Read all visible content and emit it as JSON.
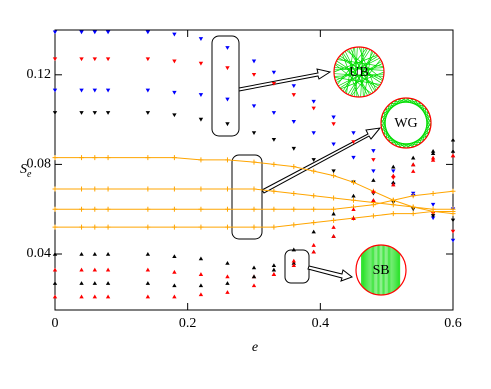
{
  "chart_data": {
    "type": "scatter",
    "xlabel": "e",
    "ylabel": "S",
    "ylabel_sub": "e",
    "x": [
      0,
      0.04,
      0.06,
      0.08,
      0.14,
      0.18,
      0.22,
      0.26,
      0.3,
      0.33,
      0.36,
      0.39,
      0.42,
      0.45,
      0.48,
      0.51,
      0.54,
      0.57,
      0.6
    ],
    "xlim": [
      0,
      0.6
    ],
    "xticks": [
      0,
      0.2,
      0.4,
      0.6
    ],
    "ylim": [
      0.015,
      0.14
    ],
    "yticks": [
      0.04,
      0.08,
      0.12
    ],
    "series": [
      {
        "color": "#0000ff",
        "marker": "down",
        "values": [
          0.139,
          0.139,
          0.139,
          0.139,
          0.139,
          0.138,
          0.136,
          0.132,
          0.126,
          0.121,
          0.115,
          0.108,
          0.101,
          0.094,
          0.086,
          0.077,
          0.067,
          0.056,
          0.046
        ]
      },
      {
        "color": "#ff0000",
        "marker": "down",
        "values": [
          0.127,
          0.127,
          0.127,
          0.127,
          0.127,
          0.126,
          0.125,
          0.123,
          0.12,
          0.116,
          0.111,
          0.105,
          0.098,
          0.09,
          0.082,
          0.074,
          0.066,
          0.058,
          0.05
        ]
      },
      {
        "color": "#0000ff",
        "marker": "down",
        "values": [
          0.113,
          0.113,
          0.113,
          0.113,
          0.113,
          0.112,
          0.111,
          0.109,
          0.106,
          0.103,
          0.099,
          0.094,
          0.089,
          0.083,
          0.077,
          0.071,
          0.066,
          0.062,
          0.06
        ]
      },
      {
        "color": "#000000",
        "marker": "down",
        "values": [
          0.103,
          0.103,
          0.103,
          0.103,
          0.103,
          0.102,
          0.1,
          0.098,
          0.094,
          0.091,
          0.087,
          0.082,
          0.077,
          0.072,
          0.067,
          0.063,
          0.06,
          0.057,
          0.055
        ]
      },
      {
        "color": "#ffa500",
        "marker": "plus",
        "line": true,
        "values": [
          0.083,
          0.083,
          0.083,
          0.083,
          0.083,
          0.083,
          0.082,
          0.082,
          0.081,
          0.08,
          0.079,
          0.077,
          0.075,
          0.072,
          0.068,
          0.064,
          0.061,
          0.059,
          0.058
        ]
      },
      {
        "color": "#ffa500",
        "marker": "plus",
        "line": true,
        "values": [
          0.069,
          0.069,
          0.069,
          0.069,
          0.069,
          0.069,
          0.069,
          0.069,
          0.069,
          0.068,
          0.067,
          0.066,
          0.065,
          0.064,
          0.063,
          0.062,
          0.061,
          0.06,
          0.06
        ]
      },
      {
        "color": "#ffa500",
        "marker": "plus",
        "line": true,
        "values": [
          0.06,
          0.06,
          0.06,
          0.06,
          0.06,
          0.06,
          0.06,
          0.06,
          0.06,
          0.06,
          0.06,
          0.06,
          0.06,
          0.061,
          0.062,
          0.064,
          0.066,
          0.067,
          0.068
        ]
      },
      {
        "color": "#ffa500",
        "marker": "plus",
        "line": true,
        "values": [
          0.052,
          0.052,
          0.052,
          0.052,
          0.052,
          0.052,
          0.052,
          0.052,
          0.052,
          0.052,
          0.053,
          0.054,
          0.055,
          0.056,
          0.057,
          0.058,
          0.058,
          0.059,
          0.059
        ]
      },
      {
        "color": "#000000",
        "marker": "up",
        "values": [
          0.04,
          0.04,
          0.04,
          0.04,
          0.04,
          0.039,
          0.038,
          0.036,
          0.034,
          0.033,
          0.036,
          0.041,
          0.048,
          0.056,
          0.064,
          0.072,
          0.08,
          0.086,
          0.091
        ]
      },
      {
        "color": "#ff0000",
        "marker": "up",
        "values": [
          0.033,
          0.033,
          0.033,
          0.033,
          0.033,
          0.032,
          0.031,
          0.03,
          0.03,
          0.031,
          0.035,
          0.041,
          0.048,
          0.056,
          0.064,
          0.071,
          0.077,
          0.082,
          0.084
        ]
      },
      {
        "color": "#000000",
        "marker": "up",
        "values": [
          0.027,
          0.027,
          0.027,
          0.027,
          0.027,
          0.026,
          0.026,
          0.027,
          0.03,
          0.035,
          0.042,
          0.05,
          0.058,
          0.066,
          0.073,
          0.079,
          0.083,
          0.085,
          0.086
        ]
      },
      {
        "color": "#ff0000",
        "marker": "up",
        "values": [
          0.021,
          0.021,
          0.021,
          0.021,
          0.021,
          0.021,
          0.022,
          0.023,
          0.026,
          0.031,
          0.037,
          0.044,
          0.052,
          0.06,
          0.068,
          0.075,
          0.08,
          0.083,
          0.084
        ]
      }
    ],
    "annotations": [
      "UB",
      "WG",
      "SB"
    ]
  }
}
